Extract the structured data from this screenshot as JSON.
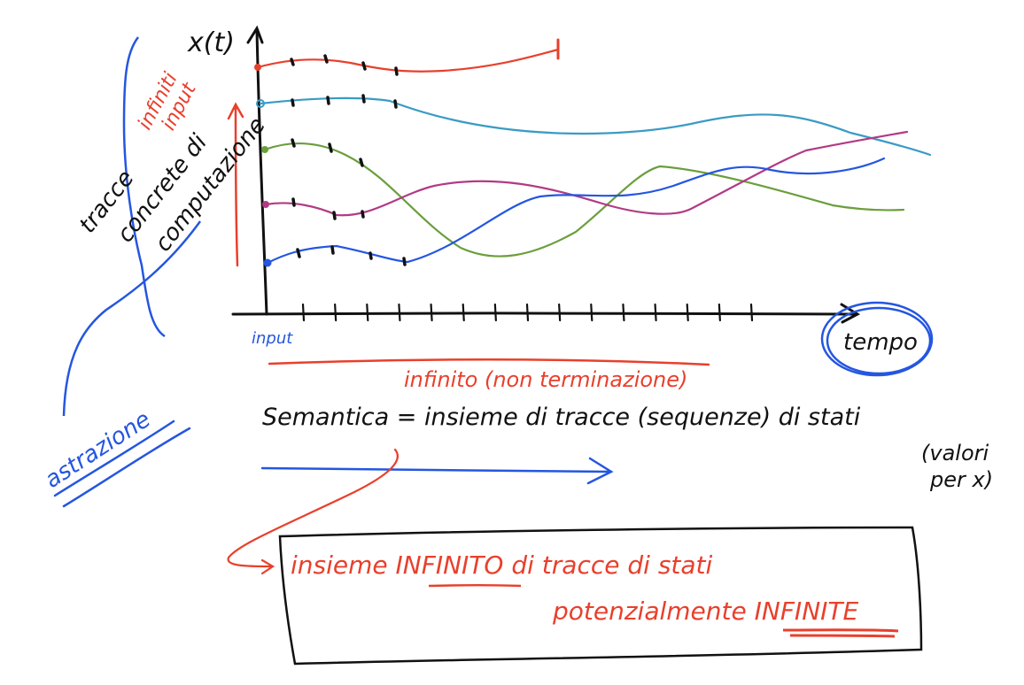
{
  "axes": {
    "y_label": "x(t)",
    "x_label": "tempo",
    "origin_label": "input",
    "ticks_count": 15
  },
  "annotations": {
    "infiniti_input": [
      "infiniti",
      "input"
    ],
    "tracce_concrete": [
      "tracce",
      "concrete di",
      "computazione"
    ],
    "infinito": "infinito (non terminazione)",
    "astrazione": "astrazione",
    "semantica": "Semantica = insieme di tracce (sequenze) di stati",
    "valori": [
      "(valori",
      "per x)"
    ],
    "box": {
      "line1": {
        "prefix": "insieme ",
        "emph": "INFINITO",
        "suffix": " di tracce di stati"
      },
      "line2": {
        "prefix": "potenzialmente ",
        "emph": "INFINITE"
      }
    }
  },
  "colors": {
    "ink": "#111111",
    "red": "#e8402c",
    "teal": "#3a9bc4",
    "green": "#6b9e3c",
    "magenta": "#b23a85",
    "blue": "#2456e0"
  },
  "traces": [
    {
      "name": "red",
      "color": "#e8402c"
    },
    {
      "name": "teal",
      "color": "#3a9bc4"
    },
    {
      "name": "green",
      "color": "#6b9e3c"
    },
    {
      "name": "magenta",
      "color": "#b23a85"
    },
    {
      "name": "blue",
      "color": "#2456e0"
    }
  ]
}
